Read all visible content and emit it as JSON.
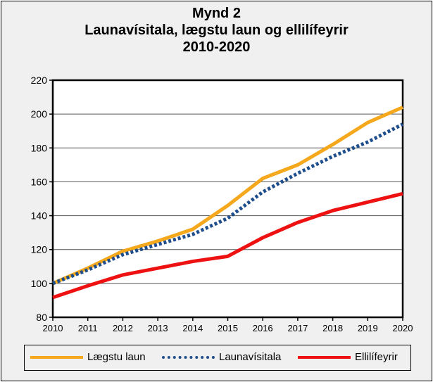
{
  "chart_data": {
    "type": "line",
    "title_lines": [
      "Mynd 2",
      "Launavísitala, lægstu laun og ellilífeyrir",
      "2010-2020"
    ],
    "x": [
      2010,
      2011,
      2012,
      2013,
      2014,
      2015,
      2016,
      2017,
      2018,
      2019,
      2020
    ],
    "xlim": [
      2010,
      2020
    ],
    "ylim": [
      80,
      220
    ],
    "yticks": [
      80,
      100,
      120,
      140,
      160,
      180,
      200,
      220
    ],
    "grid": true,
    "legend_position": "bottom",
    "series": [
      {
        "name": "Lægstu laun",
        "color": "#f5a81c",
        "style": "solid",
        "values": [
          100,
          109,
          119,
          125,
          132,
          146,
          162,
          170,
          182,
          195,
          204
        ]
      },
      {
        "name": "Launavísitala",
        "color": "#1f4e8c",
        "style": "dotted",
        "values": [
          100,
          108,
          117,
          123,
          129,
          138.5,
          154,
          165,
          175,
          183.5,
          194
        ]
      },
      {
        "name": "Ellilífeyrir",
        "color": "#ee1111",
        "style": "solid",
        "values": [
          91.7,
          98.6,
          105,
          109,
          113,
          116,
          127,
          136,
          143,
          148,
          153
        ]
      }
    ]
  }
}
